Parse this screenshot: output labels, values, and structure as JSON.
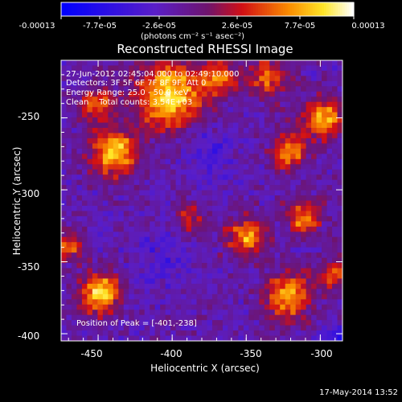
{
  "colorbar": {
    "tick_labels": [
      "-0.00013",
      "-7.7e-05",
      "-2.6e-05",
      "2.6e-05",
      "7.7e-05",
      "0.00013"
    ],
    "units": "(photons cm⁻² s⁻¹ asec⁻²)",
    "range": [
      -0.00013,
      0.00013
    ]
  },
  "chart_data": {
    "type": "heatmap",
    "title": "Reconstructed RHESSI Image",
    "xlabel": "Heliocentric X (arcsec)",
    "ylabel": "Heliocentric Y (arcsec)",
    "xlim": [
      -475,
      -285
    ],
    "ylim": [
      -405,
      -210
    ],
    "x_ticks": [
      -450,
      -400,
      -350,
      -300
    ],
    "y_ticks": [
      -250,
      -300,
      -350,
      -400
    ],
    "x_tick_labels": [
      "-450",
      "-400",
      "-350",
      "-300"
    ],
    "y_tick_labels": [
      "-250",
      "-300",
      "-350",
      "-400"
    ],
    "annotations": [
      "27-Jun-2012 02:45:04.000 to 02:49:10.000",
      "Detectors: 3F 5F 6F 7F 8F 9F, Att 0",
      "Energy Range: 25.0 - 50.0 keV",
      "Clean    Total counts: 3.54E+03"
    ],
    "peak_label": "Position of Peak = [-401,-238]",
    "peak": [
      -401,
      -238
    ],
    "colormap": "blue-purple-red-yellow-white"
  },
  "timestamp": "17-May-2014 13:52"
}
